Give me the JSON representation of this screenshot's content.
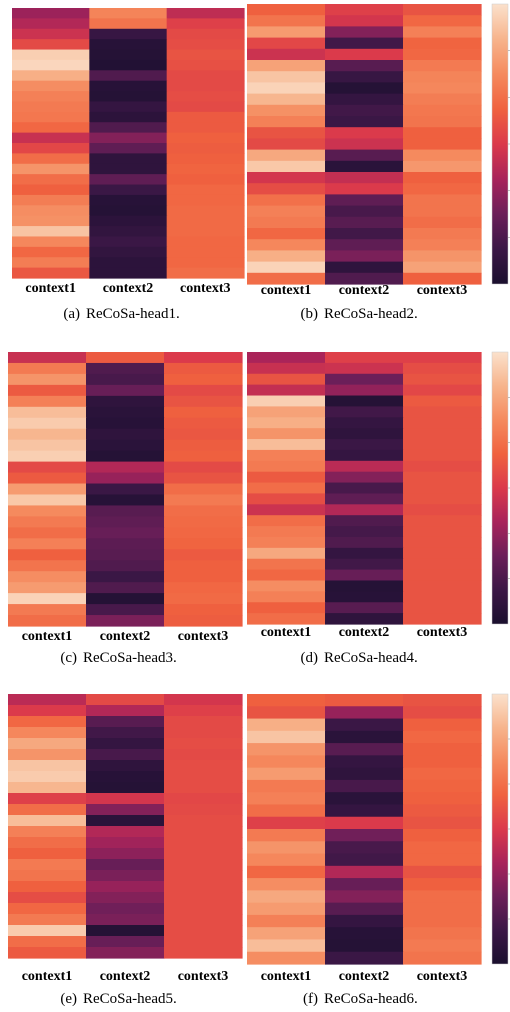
{
  "palette": [
    "#1a0f2e",
    "#3b1746",
    "#6b1f59",
    "#a8235a",
    "#db3a4b",
    "#f0623f",
    "#f58a5e",
    "#f7b48c",
    "#fbe1cc"
  ],
  "panels": [
    {
      "caption_label": "(a)",
      "caption_title": "ReCoSa-head1.",
      "colorbar": true,
      "chart_data": {
        "type": "heatmap",
        "x_categories": [
          "context1",
          "context2",
          "context3"
        ],
        "value_range": [
          0,
          1
        ],
        "rows": [
          [
            0.35,
            0.73,
            0.43
          ],
          [
            0.4,
            0.68,
            0.52
          ],
          [
            0.46,
            0.11,
            0.55
          ],
          [
            0.55,
            0.05,
            0.56
          ],
          [
            0.95,
            0.04,
            0.58
          ],
          [
            0.97,
            0.03,
            0.57
          ],
          [
            0.86,
            0.18,
            0.55
          ],
          [
            0.76,
            0.05,
            0.55
          ],
          [
            0.72,
            0.04,
            0.56
          ],
          [
            0.7,
            0.1,
            0.55
          ],
          [
            0.69,
            0.07,
            0.6
          ],
          [
            0.64,
            0.18,
            0.6
          ],
          [
            0.45,
            0.3,
            0.62
          ],
          [
            0.54,
            0.22,
            0.61
          ],
          [
            0.66,
            0.08,
            0.62
          ],
          [
            0.78,
            0.08,
            0.63
          ],
          [
            0.66,
            0.22,
            0.62
          ],
          [
            0.62,
            0.12,
            0.64
          ],
          [
            0.71,
            0.05,
            0.64
          ],
          [
            0.76,
            0.04,
            0.65
          ],
          [
            0.77,
            0.07,
            0.65
          ],
          [
            0.92,
            0.09,
            0.65
          ],
          [
            0.74,
            0.12,
            0.64
          ],
          [
            0.64,
            0.09,
            0.64
          ],
          [
            0.71,
            0.07,
            0.64
          ],
          [
            0.59,
            0.07,
            0.66
          ]
        ]
      }
    },
    {
      "caption_label": "(b)",
      "caption_title": "ReCoSa-head2.",
      "colorbar": true,
      "chart_data": {
        "type": "heatmap",
        "x_categories": [
          "context1",
          "context2",
          "context3"
        ],
        "value_range": [
          0,
          1
        ],
        "rows": [
          [
            0.62,
            0.52,
            0.58
          ],
          [
            0.68,
            0.48,
            0.64
          ],
          [
            0.8,
            0.3,
            0.72
          ],
          [
            0.54,
            0.14,
            0.63
          ],
          [
            0.46,
            0.5,
            0.64
          ],
          [
            0.82,
            0.2,
            0.7
          ],
          [
            0.92,
            0.11,
            0.73
          ],
          [
            0.96,
            0.04,
            0.74
          ],
          [
            0.88,
            0.1,
            0.71
          ],
          [
            0.77,
            0.14,
            0.69
          ],
          [
            0.72,
            0.12,
            0.68
          ],
          [
            0.58,
            0.5,
            0.62
          ],
          [
            0.55,
            0.46,
            0.62
          ],
          [
            0.84,
            0.2,
            0.75
          ],
          [
            0.93,
            0.06,
            0.79
          ],
          [
            0.48,
            0.44,
            0.62
          ],
          [
            0.56,
            0.5,
            0.64
          ],
          [
            0.67,
            0.22,
            0.68
          ],
          [
            0.72,
            0.16,
            0.68
          ],
          [
            0.7,
            0.2,
            0.66
          ],
          [
            0.64,
            0.14,
            0.7
          ],
          [
            0.74,
            0.22,
            0.72
          ],
          [
            0.86,
            0.28,
            0.78
          ],
          [
            0.96,
            0.08,
            0.82
          ],
          [
            0.66,
            0.18,
            0.62
          ]
        ]
      }
    },
    {
      "caption_label": "(c)",
      "caption_title": "ReCoSa-head3.",
      "colorbar": false,
      "chart_data": {
        "type": "heatmap",
        "x_categories": [
          "context1",
          "context2",
          "context3"
        ],
        "value_range": [
          0,
          1
        ],
        "rows": [
          [
            0.45,
            0.6,
            0.5
          ],
          [
            0.7,
            0.18,
            0.6
          ],
          [
            0.78,
            0.16,
            0.62
          ],
          [
            0.6,
            0.24,
            0.55
          ],
          [
            0.72,
            0.08,
            0.58
          ],
          [
            0.9,
            0.06,
            0.62
          ],
          [
            0.94,
            0.05,
            0.6
          ],
          [
            0.88,
            0.08,
            0.59
          ],
          [
            0.92,
            0.06,
            0.61
          ],
          [
            0.95,
            0.04,
            0.62
          ],
          [
            0.55,
            0.4,
            0.55
          ],
          [
            0.6,
            0.34,
            0.58
          ],
          [
            0.8,
            0.12,
            0.66
          ],
          [
            0.93,
            0.05,
            0.7
          ],
          [
            0.75,
            0.2,
            0.66
          ],
          [
            0.7,
            0.22,
            0.65
          ],
          [
            0.66,
            0.24,
            0.64
          ],
          [
            0.72,
            0.21,
            0.63
          ],
          [
            0.62,
            0.2,
            0.6
          ],
          [
            0.68,
            0.18,
            0.62
          ],
          [
            0.76,
            0.12,
            0.62
          ],
          [
            0.8,
            0.18,
            0.64
          ],
          [
            0.96,
            0.04,
            0.65
          ],
          [
            0.7,
            0.16,
            0.62
          ],
          [
            0.66,
            0.28,
            0.61
          ]
        ]
      }
    },
    {
      "caption_label": "(d)",
      "caption_title": "ReCoSa-head4.",
      "colorbar": true,
      "chart_data": {
        "type": "heatmap",
        "x_categories": [
          "context1",
          "context2",
          "context3"
        ],
        "value_range": [
          0,
          1
        ],
        "rows": [
          [
            0.38,
            0.52,
            0.52
          ],
          [
            0.45,
            0.46,
            0.56
          ],
          [
            0.58,
            0.25,
            0.58
          ],
          [
            0.44,
            0.33,
            0.54
          ],
          [
            0.95,
            0.04,
            0.6
          ],
          [
            0.82,
            0.14,
            0.58
          ],
          [
            0.86,
            0.1,
            0.58
          ],
          [
            0.78,
            0.08,
            0.58
          ],
          [
            0.9,
            0.12,
            0.58
          ],
          [
            0.72,
            0.1,
            0.58
          ],
          [
            0.7,
            0.42,
            0.56
          ],
          [
            0.6,
            0.3,
            0.58
          ],
          [
            0.66,
            0.16,
            0.58
          ],
          [
            0.56,
            0.22,
            0.58
          ],
          [
            0.46,
            0.4,
            0.56
          ],
          [
            0.66,
            0.18,
            0.58
          ],
          [
            0.7,
            0.15,
            0.58
          ],
          [
            0.72,
            0.18,
            0.58
          ],
          [
            0.84,
            0.1,
            0.58
          ],
          [
            0.68,
            0.14,
            0.58
          ],
          [
            0.64,
            0.24,
            0.58
          ],
          [
            0.76,
            0.04,
            0.58
          ],
          [
            0.72,
            0.05,
            0.58
          ],
          [
            0.62,
            0.2,
            0.58
          ],
          [
            0.66,
            0.08,
            0.58
          ]
        ]
      }
    },
    {
      "caption_label": "(e)",
      "caption_title": "ReCoSa-head5.",
      "colorbar": false,
      "chart_data": {
        "type": "heatmap",
        "x_categories": [
          "context1",
          "context2",
          "context3"
        ],
        "value_range": [
          0,
          1
        ],
        "rows": [
          [
            0.42,
            0.55,
            0.48
          ],
          [
            0.5,
            0.4,
            0.52
          ],
          [
            0.64,
            0.2,
            0.55
          ],
          [
            0.74,
            0.14,
            0.55
          ],
          [
            0.84,
            0.1,
            0.56
          ],
          [
            0.78,
            0.16,
            0.55
          ],
          [
            0.92,
            0.08,
            0.56
          ],
          [
            0.94,
            0.05,
            0.56
          ],
          [
            0.88,
            0.04,
            0.56
          ],
          [
            0.52,
            0.48,
            0.54
          ],
          [
            0.66,
            0.3,
            0.55
          ],
          [
            0.9,
            0.06,
            0.56
          ],
          [
            0.72,
            0.4,
            0.56
          ],
          [
            0.66,
            0.36,
            0.56
          ],
          [
            0.62,
            0.32,
            0.56
          ],
          [
            0.7,
            0.24,
            0.56
          ],
          [
            0.68,
            0.28,
            0.56
          ],
          [
            0.62,
            0.34,
            0.56
          ],
          [
            0.56,
            0.3,
            0.56
          ],
          [
            0.64,
            0.26,
            0.56
          ],
          [
            0.7,
            0.28,
            0.56
          ],
          [
            0.94,
            0.04,
            0.56
          ],
          [
            0.66,
            0.24,
            0.56
          ],
          [
            0.6,
            0.3,
            0.56
          ]
        ]
      }
    },
    {
      "caption_label": "(f)",
      "caption_title": "ReCoSa-head6.",
      "colorbar": true,
      "chart_data": {
        "type": "heatmap",
        "x_categories": [
          "context1",
          "context2",
          "context3"
        ],
        "value_range": [
          0,
          1
        ],
        "rows": [
          [
            0.62,
            0.6,
            0.58
          ],
          [
            0.58,
            0.34,
            0.56
          ],
          [
            0.86,
            0.12,
            0.62
          ],
          [
            0.92,
            0.06,
            0.64
          ],
          [
            0.78,
            0.2,
            0.62
          ],
          [
            0.74,
            0.1,
            0.62
          ],
          [
            0.8,
            0.08,
            0.64
          ],
          [
            0.7,
            0.16,
            0.63
          ],
          [
            0.72,
            0.06,
            0.62
          ],
          [
            0.66,
            0.1,
            0.6
          ],
          [
            0.52,
            0.5,
            0.58
          ],
          [
            0.7,
            0.26,
            0.62
          ],
          [
            0.78,
            0.16,
            0.64
          ],
          [
            0.74,
            0.14,
            0.64
          ],
          [
            0.64,
            0.4,
            0.58
          ],
          [
            0.76,
            0.24,
            0.62
          ],
          [
            0.84,
            0.3,
            0.66
          ],
          [
            0.8,
            0.2,
            0.66
          ],
          [
            0.72,
            0.1,
            0.66
          ],
          [
            0.82,
            0.05,
            0.68
          ],
          [
            0.9,
            0.04,
            0.7
          ],
          [
            0.76,
            0.12,
            0.68
          ]
        ]
      }
    }
  ]
}
